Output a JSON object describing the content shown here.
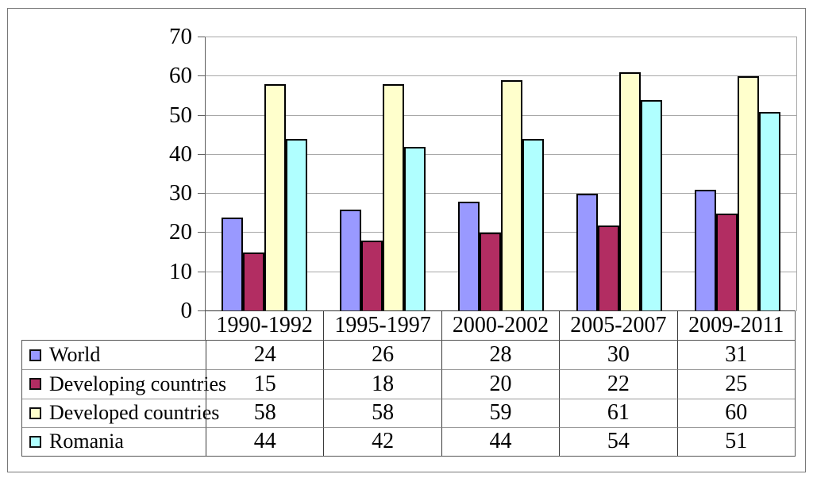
{
  "chart_data": {
    "type": "bar",
    "title": "",
    "xlabel": "",
    "ylabel": "",
    "categories": [
      "1990-1992",
      "1995-1997",
      "2000-2002",
      "2005-2007",
      "2009-2011"
    ],
    "series": [
      {
        "name": "World",
        "color": "#9999FF",
        "values": [
          24,
          26,
          28,
          30,
          31
        ]
      },
      {
        "name": "Developing countries",
        "color": "#B22D62",
        "values": [
          15,
          18,
          20,
          22,
          25
        ]
      },
      {
        "name": "Developed countries",
        "color": "#FFFFCC",
        "values": [
          58,
          58,
          59,
          61,
          60
        ]
      },
      {
        "name": "Romania",
        "color": "#B0FFFF",
        "values": [
          44,
          42,
          44,
          54,
          51
        ]
      }
    ],
    "ylim": [
      0,
      70
    ],
    "yticks": [
      0,
      10,
      20,
      30,
      40,
      50,
      60,
      70
    ],
    "grid": true,
    "legend_position": "table-left",
    "bar_border_color": "#000000",
    "gridline_color": "#a8a8a8"
  }
}
